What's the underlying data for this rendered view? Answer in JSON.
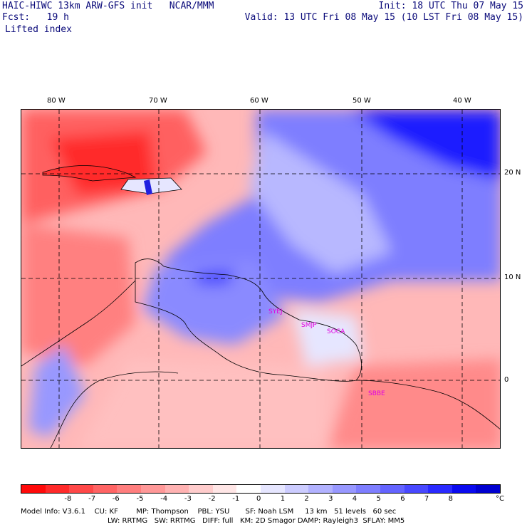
{
  "header": {
    "model_line": "HAIC-HIWC 13km ARW-GFS init   NCAR/MMM",
    "fcst_line": "Fcst:   19 h",
    "field": "Lifted index",
    "init_line": "Init: 18 UTC Thu 07 May 15",
    "valid_line": "Valid: 13 UTC Fri 08 May 15 (10 LST Fri 08 May 15)"
  },
  "map": {
    "lon_labels": [
      "80 W",
      "70 W",
      "60 W",
      "50 W",
      "40 W"
    ],
    "lat_labels": [
      "20 N",
      "10 N",
      "0"
    ],
    "cities": [
      "SYEJ",
      "SMJP",
      "SOCA",
      "SBBE"
    ]
  },
  "colorbar": {
    "colors": [
      "#ff0a0a",
      "#ff2a2a",
      "#ff4848",
      "#ff6464",
      "#ff7e7e",
      "#ff9898",
      "#ffb2b2",
      "#ffcccc",
      "#ffe6e6",
      "#ffffff",
      "#e6e6ff",
      "#ccccff",
      "#b2b2ff",
      "#9898ff",
      "#7e7eff",
      "#6464ff",
      "#4848ff",
      "#2a2aff",
      "#0a0aef",
      "#0000d0"
    ],
    "labels": [
      "-8",
      "-7",
      "-6",
      "-5",
      "-4",
      "-3",
      "-2",
      "-1",
      "0",
      "1",
      "2",
      "3",
      "4",
      "5",
      "6",
      "7",
      "8"
    ],
    "unit": "°C"
  },
  "footer": {
    "line1": "Model Info: V3.6.1    CU: KF        MP: Thompson    PBL: YSU       SF: Noah LSM     13 km   51 levels   60 sec",
    "line2": "LW: RRTMG   SW: RRTMG   DIFF: full   KM: 2D Smagor DAMP: Rayleigh3  SFLAY: MM5"
  }
}
